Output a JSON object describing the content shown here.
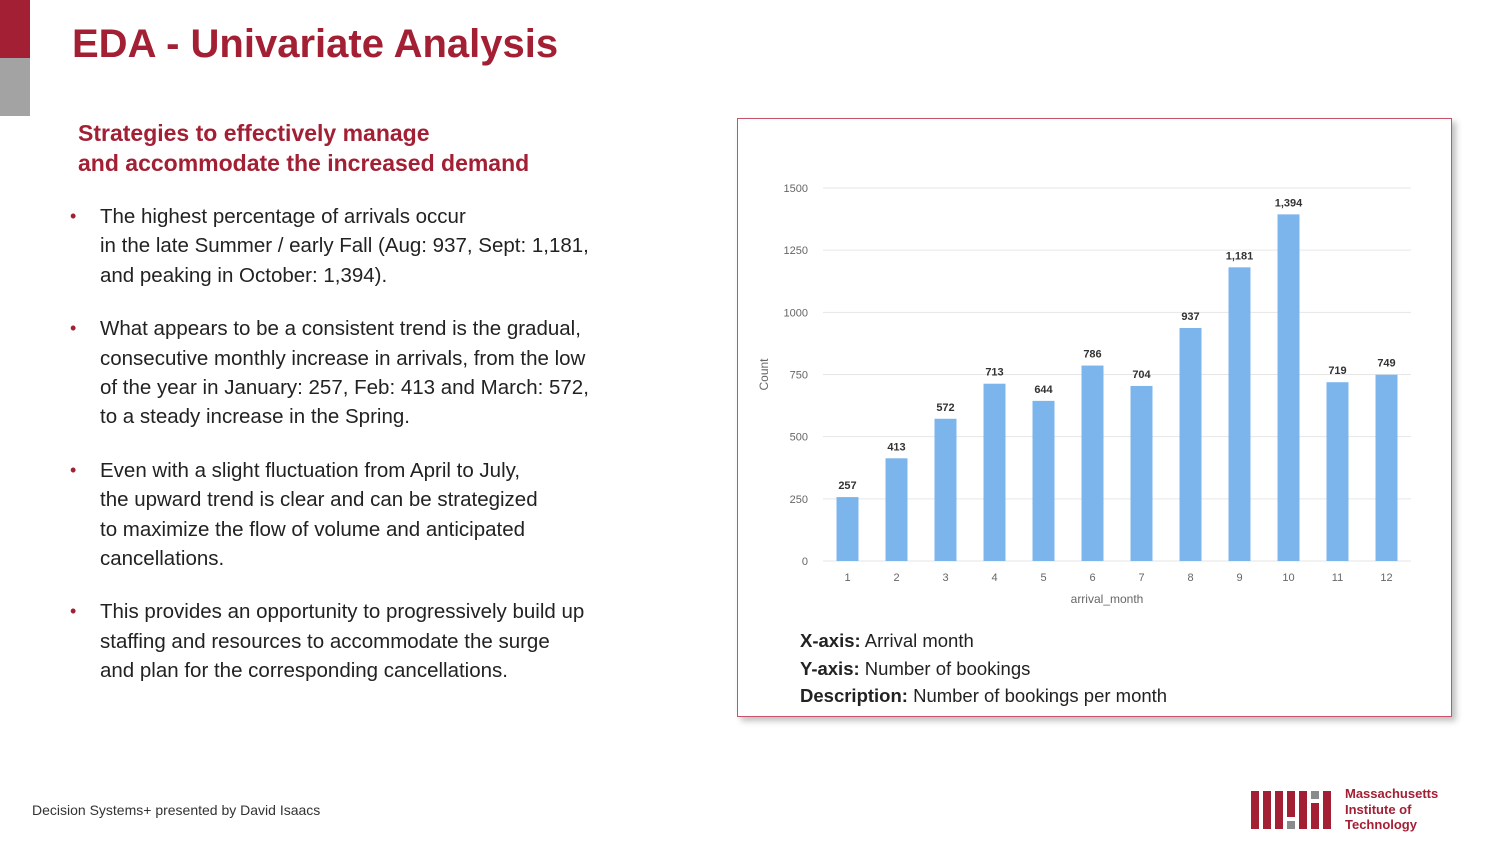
{
  "slide": {
    "title": "EDA - Univariate Analysis",
    "subtitle_lines": [
      "Strategies to effectively manage",
      "and accommodate the increased demand"
    ],
    "bullets": [
      [
        "The highest percentage of arrivals occur",
        "in the late Summer / early Fall (Aug: 937, Sept: 1,181,",
        "and peaking in October: 1,394)."
      ],
      [
        "What appears to be a consistent trend is the gradual,",
        "consecutive monthly increase in arrivals, from the low",
        "of the year in January: 257, Feb: 413 and March: 572,",
        "to a steady increase in the Spring."
      ],
      [
        "Even with a slight fluctuation from April to July,",
        "the upward trend is clear and can be strategized",
        "to maximize the flow of volume and anticipated",
        "cancellations."
      ],
      [
        "This provides an opportunity to progressively build up",
        "staffing and resources to accommodate the surge",
        "and plan for the corresponding cancellations."
      ]
    ],
    "bullet_glyph": "•",
    "captions": {
      "x_label": "X-axis:",
      "x_text": "Arrival month",
      "y_label": "Y-axis:",
      "y_text": "Number of bookings",
      "desc_label": "Description:",
      "desc_text": "Number of bookings per month"
    },
    "footer": "Decision Systems+ presented by David Isaacs",
    "logo": {
      "lines": [
        "Massachusetts",
        "Institute of",
        "Technology"
      ],
      "wordmark": "MIT"
    },
    "colors": {
      "accent": "#a31f34",
      "gray_accent": "#a3a3a3",
      "bar": "#7cb5ec"
    }
  },
  "chart_data": {
    "type": "bar",
    "categories": [
      "1",
      "2",
      "3",
      "4",
      "5",
      "6",
      "7",
      "8",
      "9",
      "10",
      "11",
      "12"
    ],
    "values": [
      257,
      413,
      572,
      713,
      644,
      786,
      704,
      937,
      1181,
      1394,
      719,
      749
    ],
    "value_labels": [
      "257",
      "413",
      "572",
      "713",
      "644",
      "786",
      "704",
      "937",
      "1,181",
      "1,394",
      "719",
      "749"
    ],
    "title": "",
    "xlabel": "arrival_month",
    "ylabel": "Count",
    "ylim": [
      0,
      1500
    ],
    "yticks": [
      0,
      250,
      500,
      750,
      1000,
      1250,
      1500
    ],
    "ytick_labels": [
      "0",
      "250",
      "500",
      "750",
      "1000",
      "1250",
      "1500"
    ],
    "grid": true
  }
}
